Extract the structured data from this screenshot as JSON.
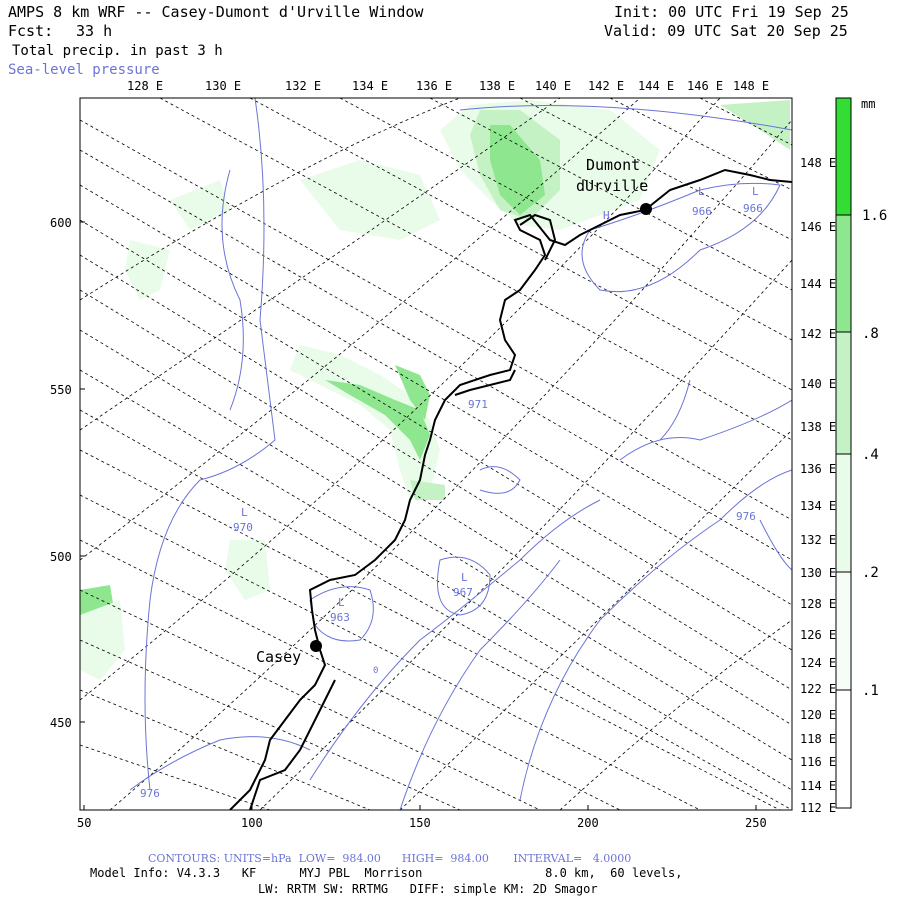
{
  "header": {
    "title": "AMPS 8 km WRF -- Casey-Dumont d'Urville Window",
    "forecast_label": "Fcst:",
    "forecast_value": "33 h",
    "field": "Total precip. in past 3 h",
    "overlay": "Sea-level pressure",
    "init": "Init: 00 UTC Fri 19 Sep 25",
    "valid": "Valid: 09 UTC Sat 20 Sep 25"
  },
  "top_lon_labels": [
    "128 E",
    "130 E",
    "132 E",
    "134 E",
    "136 E",
    "138 E",
    "140 E",
    "142 E",
    "144 E",
    "146 E",
    "148 E"
  ],
  "right_lon_labels": [
    "148 E",
    "146 E",
    "144 E",
    "142 E",
    "140 E",
    "138 E",
    "136 E",
    "134 E",
    "132 E",
    "130 E",
    "128 E",
    "126 E",
    "124 E",
    "122 E",
    "120 E",
    "118 E",
    "116 E",
    "114 E",
    "112 E"
  ],
  "x_axis": {
    "ticks": [
      50,
      100,
      150,
      200,
      250
    ],
    "range": [
      50,
      262
    ]
  },
  "y_axis": {
    "ticks": [
      600,
      550,
      500,
      450
    ],
    "range": [
      422,
      637
    ]
  },
  "colorbar": {
    "unit": "mm",
    "labels": [
      "1.6",
      ".8",
      ".4",
      ".2",
      ".1"
    ],
    "colors": [
      "#ffffff",
      "#e9fbe9",
      "#c4f2c4",
      "#8ee78e",
      "#33dd33"
    ]
  },
  "places": [
    {
      "name": "Dumont",
      "name2": "dUrville"
    },
    {
      "name": "Casey"
    }
  ],
  "pressure_labels": [
    "L",
    "966",
    "L",
    "966",
    "H",
    "971",
    "L",
    "970",
    "L",
    "967",
    "L",
    "963",
    "976",
    "976",
    "0"
  ],
  "footer": {
    "contours": "CONTOURS: UNITS=hPa  LOW=  984.00      HIGH=  984.00       INTERVAL=   4.0000",
    "model": "Model Info: V4.3.3   KF      MYJ PBL  Morrison                 8.0 km,  60 levels,",
    "physics": "LW: RRTM SW: RRTMG   DIFF: simple KM: 2D Smagor"
  },
  "colors": {
    "contour": "#6b74d6",
    "coast": "#000000",
    "grid": "#000000"
  }
}
